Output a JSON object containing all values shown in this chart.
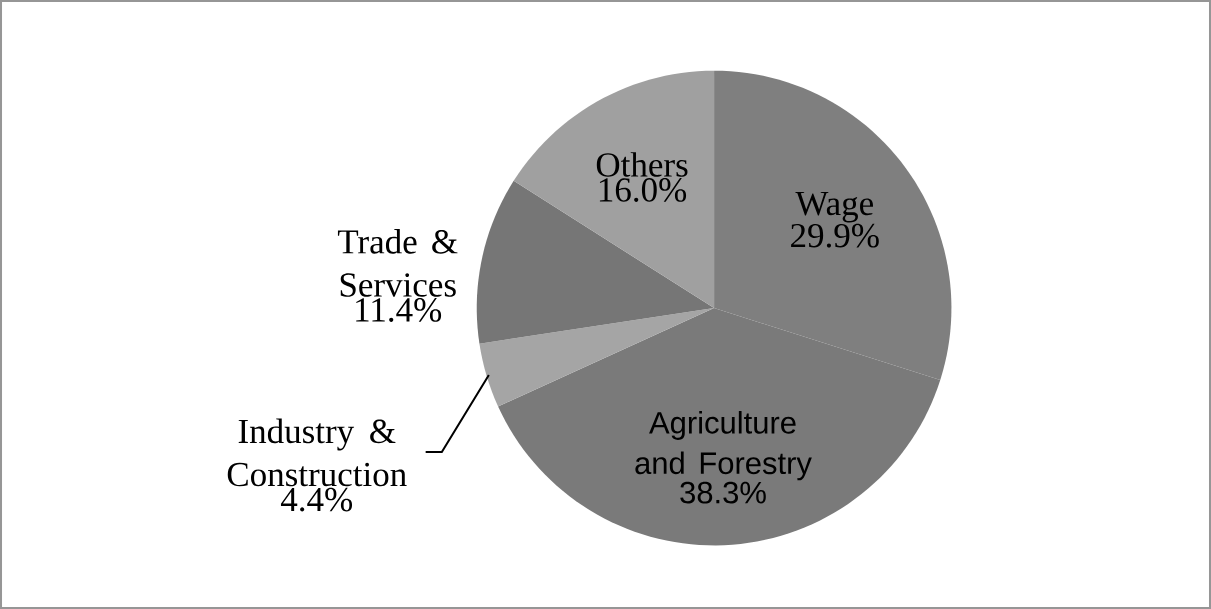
{
  "chart_data": {
    "type": "pie",
    "categories": [
      "Wage",
      "Agriculture and Forestry",
      "Industry & Construction",
      "Trade & Services",
      "Others"
    ],
    "values": [
      29.9,
      38.3,
      4.4,
      11.4,
      16.0
    ],
    "value_labels": [
      "29.9%",
      "38.3%",
      "4.4%",
      "11.4%",
      "16.0%"
    ],
    "colors": [
      "#7f7f7f",
      "#7a7a7a",
      "#a5a5a5",
      "#767676",
      "#a0a0a0"
    ],
    "legend": false
  }
}
